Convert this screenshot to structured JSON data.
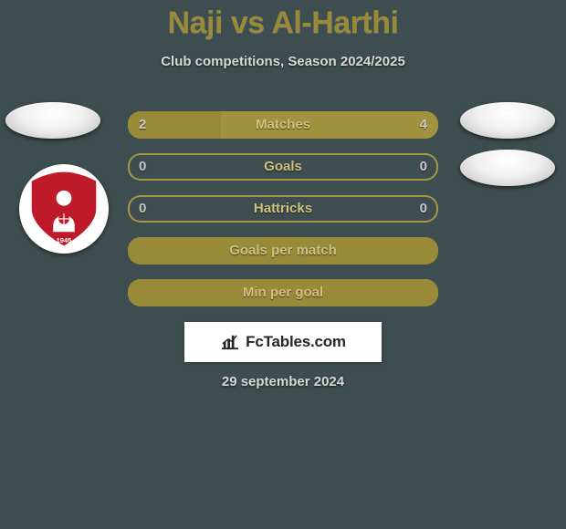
{
  "background_color": "#3e4d4f",
  "title": "Naji vs Al-Harthi",
  "title_color": "#998a3a",
  "subtitle": "Club competitions, Season 2024/2025",
  "text_muted_color": "#d9d9d9",
  "date": "29 september 2024",
  "avatars": {
    "left_1_visible": true,
    "left_2_is_crest": true,
    "right_1_visible": true,
    "right_2_visible": true
  },
  "crest": {
    "bg": "#ffffff",
    "main": "#bf1a2a",
    "accent": "#ffffff",
    "year": "1945"
  },
  "bar_style": {
    "height": 30,
    "radius": 14,
    "gap": 16,
    "label_color": "#cfc280",
    "value_color": "#c9c9c9",
    "fill_left": "#998a3a",
    "fill_right": "#a1923f",
    "track": "#3e4d4f",
    "border": "#a69647"
  },
  "bars": [
    {
      "label": "Matches",
      "left": "2",
      "right": "4",
      "left_pct": 30,
      "right_pct": 70
    },
    {
      "label": "Goals",
      "left": "0",
      "right": "0",
      "left_pct": 0,
      "right_pct": 0
    },
    {
      "label": "Hattricks",
      "left": "0",
      "right": "0",
      "left_pct": 0,
      "right_pct": 0
    },
    {
      "label": "Goals per match",
      "left": "",
      "right": "",
      "left_pct": 100,
      "right_pct": 0,
      "full": true
    },
    {
      "label": "Min per goal",
      "left": "",
      "right": "",
      "left_pct": 100,
      "right_pct": 0,
      "full": true
    }
  ],
  "branding": {
    "text": "FcTables.com",
    "icon_color": "#262626",
    "bg": "#ffffff"
  }
}
